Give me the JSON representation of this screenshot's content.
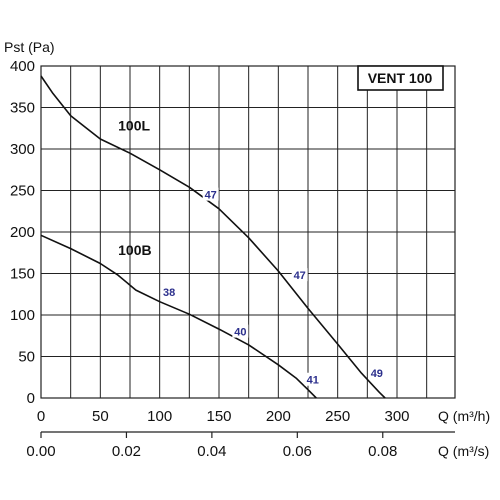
{
  "chart_data": {
    "type": "line",
    "title": "VENT 100",
    "ylabel": "Pst (Pa)",
    "xlabel": "Q (m³/h)",
    "x2label": "Q (m³/s)",
    "xlim": [
      0,
      300
    ],
    "ylim": [
      0,
      400
    ],
    "x_ticks": [
      0,
      50,
      100,
      150,
      200,
      250,
      300
    ],
    "y_ticks": [
      0,
      50,
      100,
      150,
      200,
      250,
      300,
      350,
      400
    ],
    "x2_ticks": [
      "0.00",
      "0.02",
      "0.04",
      "0.06",
      "0.08"
    ],
    "x2_ticks_m3h": [
      0,
      72,
      144,
      216,
      288
    ],
    "grid": true,
    "series": [
      {
        "name": "100L",
        "x": [
          0,
          10,
          25,
          50,
          75,
          100,
          125,
          150,
          175,
          200,
          225,
          250,
          270,
          285,
          290
        ],
        "y": [
          388,
          367,
          340,
          312,
          295,
          275,
          254,
          228,
          193,
          153,
          108,
          65,
          30,
          7,
          0
        ]
      },
      {
        "name": "100B",
        "x": [
          0,
          25,
          50,
          65,
          80,
          100,
          125,
          150,
          175,
          200,
          215,
          225,
          232
        ],
        "y": [
          196,
          180,
          162,
          148,
          130,
          116,
          101,
          83,
          64,
          40,
          24,
          10,
          0
        ]
      }
    ],
    "annotations": [
      {
        "text": "47",
        "x": 143,
        "y": 245
      },
      {
        "text": "47",
        "x": 218,
        "y": 148
      },
      {
        "text": "38",
        "x": 108,
        "y": 128
      },
      {
        "text": "40",
        "x": 168,
        "y": 80
      },
      {
        "text": "41",
        "x": 229,
        "y": 22
      },
      {
        "text": "49",
        "x": 283,
        "y": 30
      }
    ],
    "curve_labels": [
      {
        "text": "100L",
        "x": 65,
        "y": 322
      },
      {
        "text": "100B",
        "x": 65,
        "y": 172
      }
    ],
    "colors": {
      "line": "#111111",
      "grid": "#222222",
      "annotation": "#2b2f8c"
    }
  }
}
